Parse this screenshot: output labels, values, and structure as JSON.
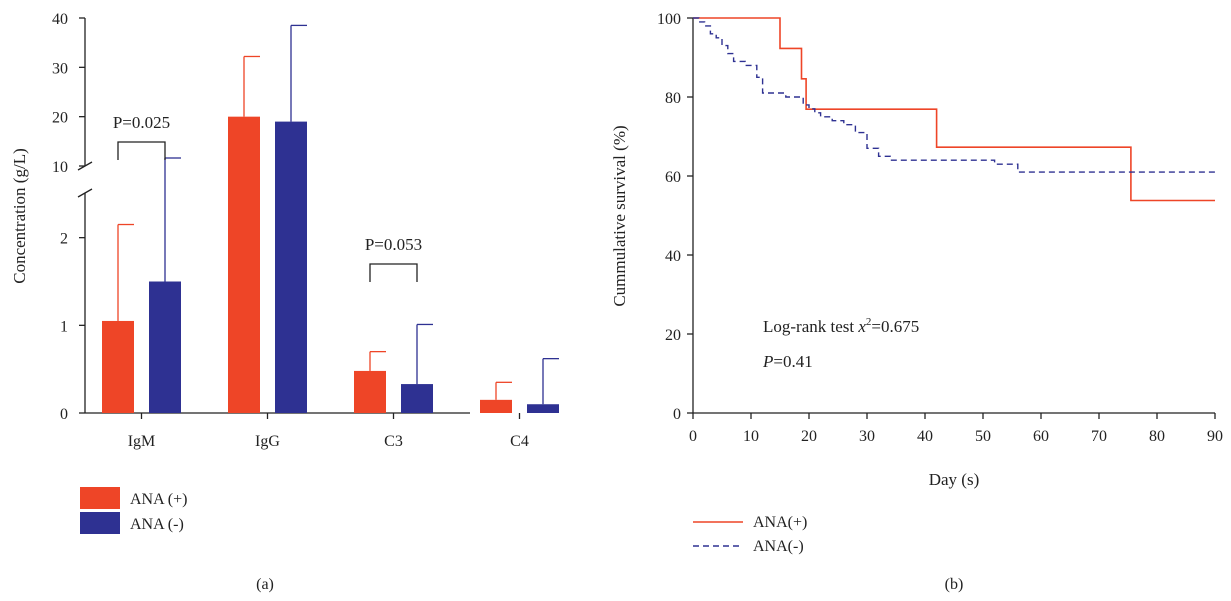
{
  "colors": {
    "positive": "#EE4527",
    "negative": "#2E3192",
    "axis": "#222222"
  },
  "chart_data": [
    {
      "panel": "(a)",
      "type": "bar",
      "ylabel": "Concentration (g/L)",
      "y_axis_broken": true,
      "y_lower_segment": {
        "range": [
          0,
          3
        ],
        "ticks": [
          0,
          1,
          2
        ]
      },
      "y_upper_segment": {
        "range": [
          10,
          40
        ],
        "ticks": [
          10,
          20,
          30,
          40
        ]
      },
      "categories": [
        "IgM",
        "IgG",
        "C3",
        "C4"
      ],
      "series": [
        {
          "name": "ANA (+)",
          "values": [
            1.05,
            20.0,
            0.48,
            0.15
          ],
          "error_upper": [
            2.15,
            32.2,
            0.7,
            0.35
          ]
        },
        {
          "name": "ANA (-)",
          "values": [
            1.5,
            19.0,
            0.33,
            0.1
          ],
          "error_upper": [
            8.1,
            38.5,
            1.01,
            0.62
          ]
        }
      ],
      "annotations": [
        {
          "category": "IgM",
          "text": "P=0.025"
        },
        {
          "category": "C3",
          "text": "P=0.053"
        }
      ],
      "legend": {
        "placement": "below-left",
        "entries": [
          "ANA (+)",
          "ANA (-)"
        ]
      }
    },
    {
      "panel": "(b)",
      "type": "line",
      "xlabel": "Day (s)",
      "ylabel": "Cummulative survival (%)",
      "xlim": [
        0,
        90
      ],
      "ylim": [
        0,
        100
      ],
      "xticks": [
        0,
        10,
        20,
        30,
        40,
        50,
        60,
        70,
        80,
        90
      ],
      "yticks": [
        0,
        20,
        40,
        60,
        80,
        100
      ],
      "series": [
        {
          "name": "ANA(+)",
          "style": "solid",
          "x": [
            0,
            15,
            15,
            18.7,
            18.7,
            19.5,
            19.5,
            42,
            42,
            75.5,
            75.5,
            90
          ],
          "y": [
            100,
            100,
            92.3,
            92.3,
            84.6,
            84.6,
            76.9,
            76.9,
            67.3,
            67.3,
            53.8,
            53.8
          ]
        },
        {
          "name": "ANA(-)",
          "style": "dashed",
          "x": [
            0,
            1,
            1,
            2,
            2,
            3,
            3,
            4,
            4,
            5,
            5,
            6,
            6,
            7,
            7,
            9,
            9,
            11,
            11,
            12,
            12,
            16,
            16,
            19,
            19,
            20,
            20,
            21,
            21,
            22,
            22,
            24,
            24,
            26,
            26,
            28,
            28,
            30,
            30,
            32,
            32,
            34,
            34,
            36,
            36,
            52,
            52,
            56,
            56,
            90
          ],
          "y": [
            100,
            100,
            99,
            99,
            98,
            98,
            96,
            96,
            95,
            95,
            93,
            93,
            91,
            91,
            89,
            89,
            88,
            88,
            85,
            85,
            81,
            81,
            80,
            80,
            78,
            78,
            77,
            77,
            76,
            76,
            75,
            75,
            74,
            74,
            73,
            73,
            71,
            71,
            67,
            67,
            65,
            65,
            64,
            64,
            64,
            64,
            63,
            63,
            61,
            61
          ]
        }
      ],
      "annotations": {
        "test_prefix": "Log-rank test ",
        "test_var": "x",
        "test_sup": "2",
        "test_value": "=0.675",
        "p_var": "P",
        "p_value": "=0.41"
      },
      "legend": {
        "placement": "below-left",
        "entries": [
          "ANA(+)",
          "ANA(-)"
        ]
      }
    }
  ]
}
